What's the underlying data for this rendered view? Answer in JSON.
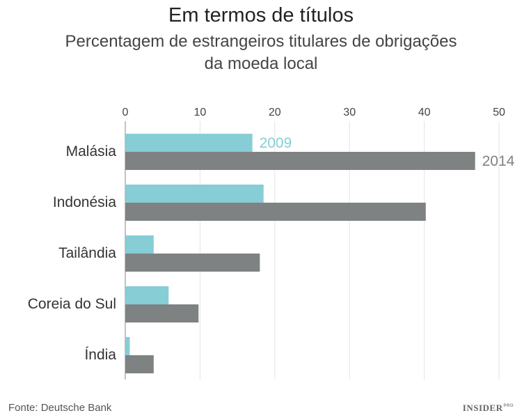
{
  "header": {
    "title": "Em termos de títulos",
    "subtitle_line1": "Percentagem de estrangeiros titulares de obrigações",
    "subtitle_line2": "da moeda local"
  },
  "footer": {
    "source": "Fonte: Deutsche Bank",
    "brand": "INSIDER",
    "brand_suffix": "PRO"
  },
  "chart_data": {
    "type": "bar",
    "orientation": "horizontal",
    "categories": [
      "Malásia",
      "Indonésia",
      "Tailândia",
      "Coreia do Sul",
      "Índia"
    ],
    "series": [
      {
        "name": "2009",
        "values": [
          17,
          18.5,
          3.8,
          5.8,
          0.6
        ],
        "color": "#86cdd5"
      },
      {
        "name": "2014",
        "values": [
          46.8,
          40.2,
          18,
          9.8,
          3.8
        ],
        "color": "#7e8283"
      }
    ],
    "xlim": [
      0,
      50
    ],
    "xticks": [
      0,
      10,
      20,
      30,
      40,
      50
    ],
    "xtick_labels": [
      "0",
      "10",
      "20",
      "30",
      "40",
      "50"
    ],
    "x_axis_position": "top",
    "grid": "vertical",
    "legend": "inline labels on first category"
  }
}
